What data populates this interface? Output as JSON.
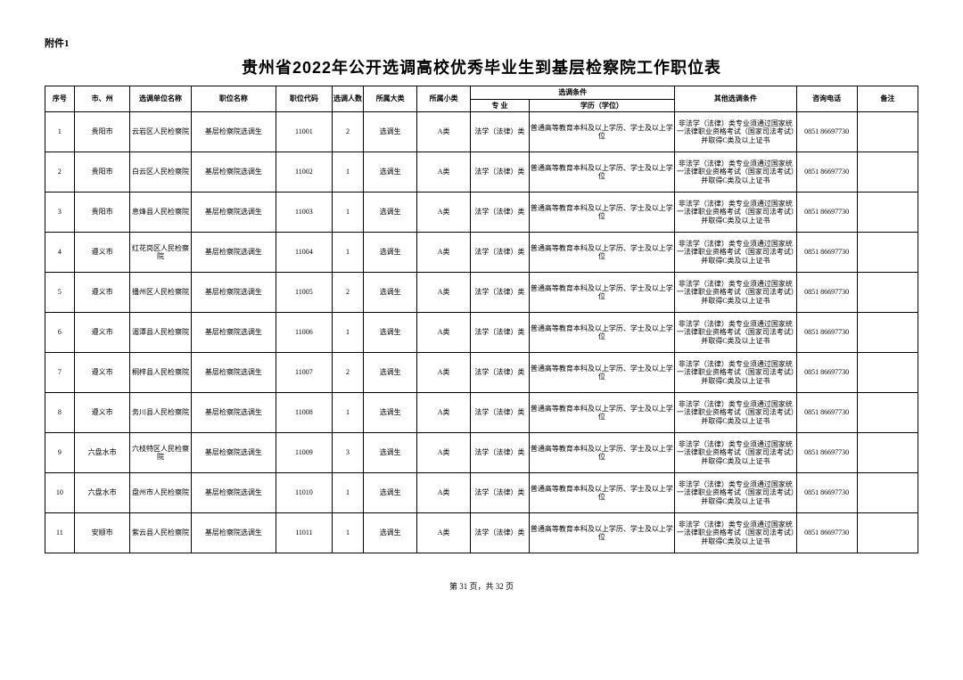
{
  "attachment_label": "附件1",
  "title": "贵州省2022年公开选调高校优秀毕业生到基层检察院工作职位表",
  "footer": "第 31 页，共 32 页",
  "headers": {
    "seq": "序号",
    "city": "市、州",
    "unit": "选调单位名称",
    "position": "职位名称",
    "code": "职位代码",
    "num": "选调人数",
    "cat1": "所属大类",
    "cat2": "所属小类",
    "cond_group": "选调条件",
    "major": "专 业",
    "edu": "学历（学位）",
    "other": "其他选调条件",
    "tel": "咨询电话",
    "note": "备注"
  },
  "common": {
    "position": "基层检察院选调生",
    "cat1": "选调生",
    "cat2": "A类",
    "major": "法学（法律）类",
    "edu": "普通高等教育本科及以上学历、学士及以上学位",
    "other": "非法学（法律）类专业须通过国家统一法律职业资格考试（国家司法考试）并取得C类及以上证书",
    "tel": "0851 86697730"
  },
  "rows": [
    {
      "seq": "1",
      "city": "贵阳市",
      "unit": "云岩区人民检察院",
      "code": "11001",
      "num": "2"
    },
    {
      "seq": "2",
      "city": "贵阳市",
      "unit": "白云区人民检察院",
      "code": "11002",
      "num": "1"
    },
    {
      "seq": "3",
      "city": "贵阳市",
      "unit": "息烽县人民检察院",
      "code": "11003",
      "num": "1"
    },
    {
      "seq": "4",
      "city": "遵义市",
      "unit": "红花岗区人民检察院",
      "code": "11004",
      "num": "1"
    },
    {
      "seq": "5",
      "city": "遵义市",
      "unit": "播州区人民检察院",
      "code": "11005",
      "num": "2"
    },
    {
      "seq": "6",
      "city": "遵义市",
      "unit": "湄潭县人民检察院",
      "code": "11006",
      "num": "1"
    },
    {
      "seq": "7",
      "city": "遵义市",
      "unit": "桐梓县人民检察院",
      "code": "11007",
      "num": "2"
    },
    {
      "seq": "8",
      "city": "遵义市",
      "unit": "务川县人民检察院",
      "code": "11008",
      "num": "1"
    },
    {
      "seq": "9",
      "city": "六盘水市",
      "unit": "六枝特区人民检察院",
      "code": "11009",
      "num": "3"
    },
    {
      "seq": "10",
      "city": "六盘水市",
      "unit": "盘州市人民检察院",
      "code": "11010",
      "num": "1"
    },
    {
      "seq": "11",
      "city": "安顺市",
      "unit": "紫云县人民检察院",
      "code": "11011",
      "num": "1"
    }
  ]
}
